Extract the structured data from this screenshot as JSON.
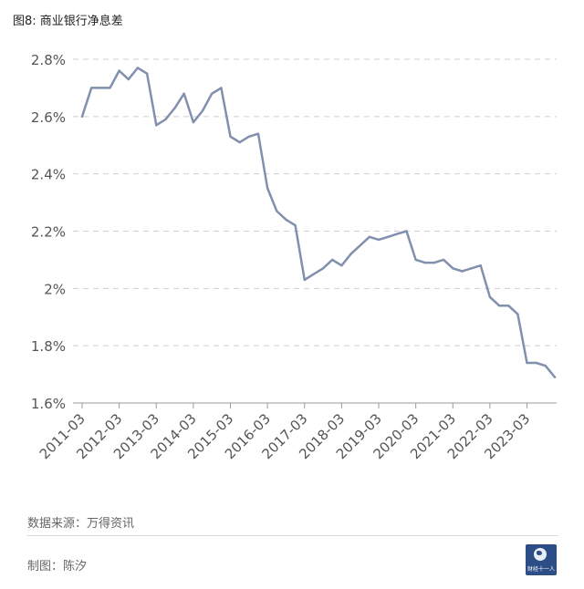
{
  "figure": {
    "title": "图8: 商业银行净息差",
    "source": "数据来源：万得资讯",
    "author": "制图：陈汐",
    "logo_text": "财经十一人"
  },
  "colors": {
    "line": "#8090ad",
    "grid": "#cfcfcf",
    "axis": "#999999",
    "text": "#555555"
  },
  "chart_data": {
    "type": "line",
    "title": "图8: 商业银行净息差",
    "xlabel": "",
    "ylabel": "",
    "ylim": [
      1.6,
      2.8
    ],
    "y_ticks": [
      1.6,
      1.8,
      2.0,
      2.2,
      2.4,
      2.6,
      2.8
    ],
    "y_tick_labels": [
      "1.6%",
      "1.8%",
      "2%",
      "2.2%",
      "2.4%",
      "2.6%",
      "2.8%"
    ],
    "x_tick_labels": [
      "2011-03",
      "2012-03",
      "2013-03",
      "2014-03",
      "2015-03",
      "2016-03",
      "2017-03",
      "2018-03",
      "2019-03",
      "2020-03",
      "2021-03",
      "2022-03",
      "2023-03"
    ],
    "grid": true,
    "legend": "none",
    "series": [
      {
        "x": [
          "2011-03",
          "2011-06",
          "2011-09",
          "2011-12",
          "2012-03",
          "2012-06",
          "2012-09",
          "2012-12",
          "2013-03",
          "2013-06",
          "2013-09",
          "2013-12",
          "2014-03",
          "2014-06",
          "2014-09",
          "2014-12",
          "2015-03",
          "2015-06",
          "2015-09",
          "2015-12",
          "2016-03",
          "2016-06",
          "2016-09",
          "2016-12",
          "2017-03",
          "2017-06",
          "2017-09",
          "2017-12",
          "2018-03",
          "2018-06",
          "2018-09",
          "2018-12",
          "2019-03",
          "2019-06",
          "2019-09",
          "2019-12",
          "2020-03",
          "2020-06",
          "2020-09",
          "2020-12",
          "2021-03",
          "2021-06",
          "2021-09",
          "2021-12",
          "2022-03",
          "2022-06",
          "2022-09",
          "2022-12",
          "2023-03",
          "2023-06",
          "2023-09",
          "2023-12"
        ],
        "values": [
          2.6,
          2.7,
          2.7,
          2.7,
          2.76,
          2.73,
          2.77,
          2.75,
          2.57,
          2.59,
          2.63,
          2.68,
          2.58,
          2.62,
          2.68,
          2.7,
          2.53,
          2.51,
          2.53,
          2.54,
          2.35,
          2.27,
          2.24,
          2.22,
          2.03,
          2.05,
          2.07,
          2.1,
          2.08,
          2.12,
          2.15,
          2.18,
          2.17,
          2.18,
          2.19,
          2.2,
          2.1,
          2.09,
          2.09,
          2.1,
          2.07,
          2.06,
          2.07,
          2.08,
          1.97,
          1.94,
          1.94,
          1.91,
          1.74,
          1.74,
          1.73,
          1.69
        ]
      }
    ]
  }
}
